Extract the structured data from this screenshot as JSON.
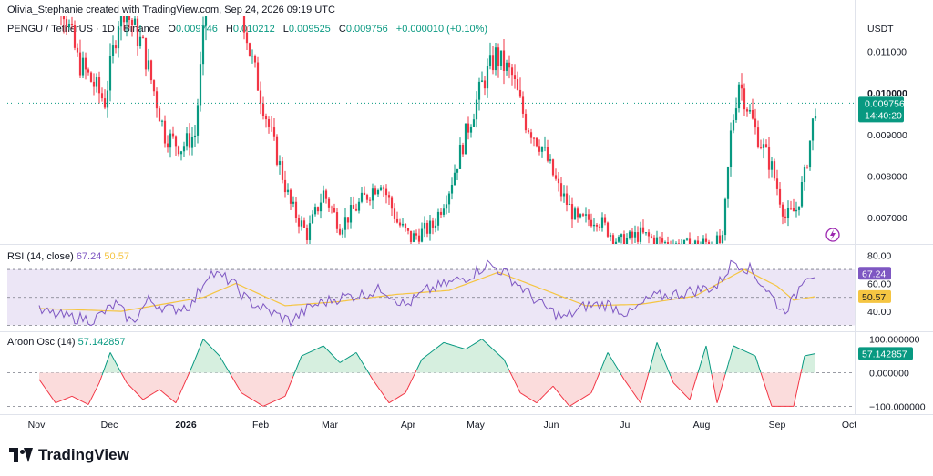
{
  "header": {
    "credit": "Olivia_Stephanie created with TradingView.com, Sep 24, 2026 09:19 UTC"
  },
  "legend": {
    "symbol": "PENGU / TetherUS · 1D · Binance",
    "o_label": "O",
    "o": "0.009746",
    "h_label": "H",
    "h": "0.010212",
    "l_label": "L",
    "l": "0.009525",
    "c_label": "C",
    "c": "0.009756",
    "change": "+0.000010 (+0.10%)"
  },
  "rsi_legend": {
    "label": "RSI (14, close)",
    "value": "67.24",
    "ma_value": "50.57"
  },
  "aroon_legend": {
    "label": "Aroon Osc (14)",
    "value": "57.142857"
  },
  "colors": {
    "up": "#089981",
    "down": "#f23645",
    "rsi": "#7e57c2",
    "rsi_ma": "#f5c542",
    "aroon_pos_fill": "#d6efdf",
    "aroon_neg_fill": "#fbdcdc",
    "rsi_band": "#ece6f6"
  },
  "brand": {
    "logo_text": "TradingView",
    "logo_icon": "tradingview-logo-icon"
  },
  "alert_icon": "lightning-icon",
  "chart_data": [
    {
      "type": "candlestick",
      "title": "PENGU / TetherUS · 1D · Binance",
      "price_axis_label": "USDT",
      "y_ticks": [
        "0.011000",
        "0.010000",
        "0.009000",
        "0.008000",
        "0.007000"
      ],
      "ylim": [
        0.00637,
        0.0118
      ],
      "last_price": "0.009756",
      "countdown": "14:40:20",
      "x_ticks": [
        "Nov",
        "Dec",
        "2026",
        "Feb",
        "Mar",
        "Apr",
        "May",
        "Jun",
        "Jul",
        "Aug",
        "Sep",
        "Oct"
      ],
      "close_path": [
        {
          "d": 0,
          "c": 0.0134
        },
        {
          "d": 8,
          "c": 0.0123
        },
        {
          "d": 14,
          "c": 0.0108
        },
        {
          "d": 24,
          "c": 0.0098
        },
        {
          "d": 30,
          "c": 0.0122
        },
        {
          "d": 38,
          "c": 0.0111
        },
        {
          "d": 46,
          "c": 0.009
        },
        {
          "d": 52,
          "c": 0.0087
        },
        {
          "d": 57,
          "c": 0.009
        },
        {
          "d": 62,
          "c": 0.0128
        },
        {
          "d": 69,
          "c": 0.014
        },
        {
          "d": 77,
          "c": 0.011
        },
        {
          "d": 84,
          "c": 0.0092
        },
        {
          "d": 92,
          "c": 0.0073
        },
        {
          "d": 98,
          "c": 0.0066
        },
        {
          "d": 104,
          "c": 0.0076
        },
        {
          "d": 110,
          "c": 0.0068
        },
        {
          "d": 118,
          "c": 0.0074
        },
        {
          "d": 125,
          "c": 0.0079
        },
        {
          "d": 131,
          "c": 0.0069
        },
        {
          "d": 136,
          "c": 0.0065
        },
        {
          "d": 144,
          "c": 0.0068
        },
        {
          "d": 150,
          "c": 0.0077
        },
        {
          "d": 156,
          "c": 0.009
        },
        {
          "d": 162,
          "c": 0.0102
        },
        {
          "d": 167,
          "c": 0.0109
        },
        {
          "d": 173,
          "c": 0.0104
        },
        {
          "d": 178,
          "c": 0.0093
        },
        {
          "d": 184,
          "c": 0.0087
        },
        {
          "d": 190,
          "c": 0.0077
        },
        {
          "d": 197,
          "c": 0.0069
        },
        {
          "d": 204,
          "c": 0.007
        },
        {
          "d": 212,
          "c": 0.0064
        },
        {
          "d": 220,
          "c": 0.0066
        },
        {
          "d": 228,
          "c": 0.0064
        },
        {
          "d": 236,
          "c": 0.0063
        },
        {
          "d": 244,
          "c": 0.0064
        },
        {
          "d": 250,
          "c": 0.0064
        },
        {
          "d": 253,
          "c": 0.009
        },
        {
          "d": 256,
          "c": 0.0103
        },
        {
          "d": 262,
          "c": 0.0091
        },
        {
          "d": 268,
          "c": 0.0082
        },
        {
          "d": 273,
          "c": 0.007
        },
        {
          "d": 277,
          "c": 0.0072
        },
        {
          "d": 280,
          "c": 0.008
        },
        {
          "d": 284,
          "c": 0.0097
        }
      ]
    },
    {
      "type": "line",
      "title": "RSI (14, close)",
      "y_ticks": [
        "80.00",
        "60.00",
        "40.00"
      ],
      "ylim": [
        27,
        87
      ],
      "band": [
        30,
        70
      ],
      "middle": 50,
      "value": "67.24",
      "ma_value": "50.57",
      "series": [
        {
          "name": "RSI",
          "points": [
            {
              "d": 0,
              "v": 40
            },
            {
              "d": 10,
              "v": 36
            },
            {
              "d": 20,
              "v": 34
            },
            {
              "d": 28,
              "v": 45
            },
            {
              "d": 34,
              "v": 32
            },
            {
              "d": 40,
              "v": 48
            },
            {
              "d": 48,
              "v": 41
            },
            {
              "d": 56,
              "v": 45
            },
            {
              "d": 62,
              "v": 68
            },
            {
              "d": 70,
              "v": 62
            },
            {
              "d": 76,
              "v": 48
            },
            {
              "d": 84,
              "v": 40
            },
            {
              "d": 92,
              "v": 33
            },
            {
              "d": 100,
              "v": 44
            },
            {
              "d": 110,
              "v": 50
            },
            {
              "d": 118,
              "v": 52
            },
            {
              "d": 126,
              "v": 56
            },
            {
              "d": 134,
              "v": 44
            },
            {
              "d": 142,
              "v": 55
            },
            {
              "d": 150,
              "v": 60
            },
            {
              "d": 158,
              "v": 66
            },
            {
              "d": 164,
              "v": 74
            },
            {
              "d": 170,
              "v": 68
            },
            {
              "d": 176,
              "v": 58
            },
            {
              "d": 184,
              "v": 44
            },
            {
              "d": 192,
              "v": 35
            },
            {
              "d": 200,
              "v": 44
            },
            {
              "d": 208,
              "v": 45
            },
            {
              "d": 216,
              "v": 38
            },
            {
              "d": 224,
              "v": 50
            },
            {
              "d": 232,
              "v": 52
            },
            {
              "d": 240,
              "v": 55
            },
            {
              "d": 248,
              "v": 58
            },
            {
              "d": 254,
              "v": 76
            },
            {
              "d": 260,
              "v": 70
            },
            {
              "d": 266,
              "v": 56
            },
            {
              "d": 272,
              "v": 40
            },
            {
              "d": 276,
              "v": 48
            },
            {
              "d": 280,
              "v": 66
            },
            {
              "d": 284,
              "v": 67
            }
          ]
        },
        {
          "name": "RSI-based MA",
          "points": [
            {
              "d": 0,
              "v": 42
            },
            {
              "d": 30,
              "v": 40
            },
            {
              "d": 60,
              "v": 50
            },
            {
              "d": 72,
              "v": 60
            },
            {
              "d": 90,
              "v": 44
            },
            {
              "d": 110,
              "v": 47
            },
            {
              "d": 130,
              "v": 52
            },
            {
              "d": 150,
              "v": 55
            },
            {
              "d": 168,
              "v": 68
            },
            {
              "d": 184,
              "v": 56
            },
            {
              "d": 200,
              "v": 44
            },
            {
              "d": 220,
              "v": 45
            },
            {
              "d": 240,
              "v": 51
            },
            {
              "d": 258,
              "v": 70
            },
            {
              "d": 270,
              "v": 58
            },
            {
              "d": 276,
              "v": 48
            },
            {
              "d": 284,
              "v": 50.57
            }
          ]
        }
      ]
    },
    {
      "type": "area",
      "title": "Aroon Osc (14)",
      "y_ticks": [
        "100.000000",
        "0.000000",
        "−100.000000"
      ],
      "ylim": [
        -118,
        118
      ],
      "value": "57.142857",
      "series": [
        {
          "name": "Aroon Osc",
          "points": [
            {
              "d": 0,
              "v": -20
            },
            {
              "d": 6,
              "v": -90
            },
            {
              "d": 12,
              "v": -70
            },
            {
              "d": 18,
              "v": -95
            },
            {
              "d": 22,
              "v": -30
            },
            {
              "d": 26,
              "v": 60
            },
            {
              "d": 32,
              "v": -30
            },
            {
              "d": 38,
              "v": -80
            },
            {
              "d": 44,
              "v": -50
            },
            {
              "d": 50,
              "v": -90
            },
            {
              "d": 56,
              "v": 20
            },
            {
              "d": 60,
              "v": 100
            },
            {
              "d": 66,
              "v": 50
            },
            {
              "d": 74,
              "v": -60
            },
            {
              "d": 82,
              "v": -100
            },
            {
              "d": 90,
              "v": -70
            },
            {
              "d": 96,
              "v": 50
            },
            {
              "d": 104,
              "v": 80
            },
            {
              "d": 110,
              "v": 30
            },
            {
              "d": 116,
              "v": 60
            },
            {
              "d": 122,
              "v": -20
            },
            {
              "d": 128,
              "v": -90
            },
            {
              "d": 134,
              "v": -60
            },
            {
              "d": 140,
              "v": 40
            },
            {
              "d": 148,
              "v": 90
            },
            {
              "d": 156,
              "v": 70
            },
            {
              "d": 162,
              "v": 100
            },
            {
              "d": 170,
              "v": 40
            },
            {
              "d": 176,
              "v": -60
            },
            {
              "d": 182,
              "v": -90
            },
            {
              "d": 188,
              "v": -40
            },
            {
              "d": 194,
              "v": -100
            },
            {
              "d": 202,
              "v": -60
            },
            {
              "d": 208,
              "v": 60
            },
            {
              "d": 214,
              "v": -20
            },
            {
              "d": 220,
              "v": -90
            },
            {
              "d": 226,
              "v": 90
            },
            {
              "d": 232,
              "v": -30
            },
            {
              "d": 238,
              "v": -80
            },
            {
              "d": 244,
              "v": 80
            },
            {
              "d": 248,
              "v": -90
            },
            {
              "d": 254,
              "v": 80
            },
            {
              "d": 262,
              "v": 50
            },
            {
              "d": 268,
              "v": -100
            },
            {
              "d": 276,
              "v": -100
            },
            {
              "d": 280,
              "v": 50
            },
            {
              "d": 284,
              "v": 57
            }
          ]
        }
      ]
    }
  ]
}
